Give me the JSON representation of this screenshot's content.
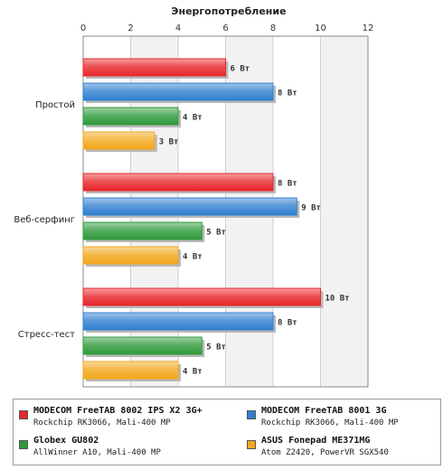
{
  "chart_data": {
    "type": "bar",
    "orientation": "horizontal",
    "title": "Энергопотребление",
    "xlim": [
      0,
      12
    ],
    "xticks": [
      0,
      2,
      4,
      6,
      8,
      10,
      12
    ],
    "grid": true,
    "unit_suffix": "Вт",
    "categories": [
      "Простой",
      "Веб-серфинг",
      "Стресс-тест"
    ],
    "series": [
      {
        "name": "MODECOM FreeTAB 8002 IPS X2 3G+",
        "spec": "Rockchip RK3066, Mali-400 MP",
        "color": "#e8262b",
        "values": [
          6,
          8,
          10
        ]
      },
      {
        "name": "MODECOM FreeTAB 8001 3G",
        "spec": "Rockchip RK3066, Mali-400 MP",
        "color": "#2f7fd0",
        "values": [
          8,
          9,
          8
        ]
      },
      {
        "name": "Globex GU802",
        "spec": "AllWinner A10, Mali-400 MP",
        "color": "#2e9a3a",
        "values": [
          4,
          5,
          5
        ]
      },
      {
        "name": "ASUS Fonepad ME371MG",
        "spec": "Atom Z2420, PowerVR SGX540",
        "color": "#f2a71c",
        "values": [
          3,
          4,
          4
        ]
      }
    ],
    "legend_position": "bottom"
  }
}
